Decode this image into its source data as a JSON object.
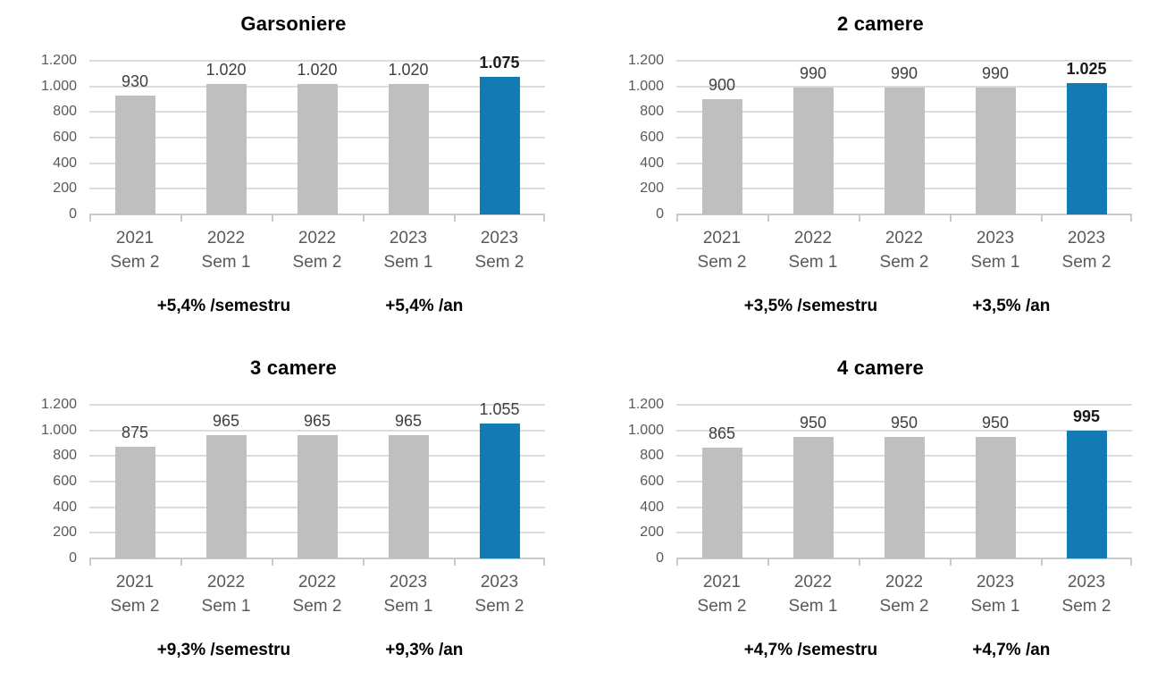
{
  "colors": {
    "bar": "#bfbfbf",
    "bar_highlight": "#147ab3",
    "gridline": "#dcdcdc",
    "axis_line": "#c9c9c9",
    "axis_text": "#595959",
    "value_text": "#3f3f3f",
    "value_text_bold": "#1a1a1a",
    "title_text": "#000000",
    "annotation_text": "#000000"
  },
  "chart_data": [
    {
      "type": "bar",
      "title": "Garsoniere",
      "categories": [
        "2021 Sem 2",
        "2022 Sem 1",
        "2022 Sem 2",
        "2023 Sem 1",
        "2023 Sem 2"
      ],
      "values": [
        930,
        1020,
        1020,
        1020,
        1075
      ],
      "value_labels": [
        "930",
        "1.020",
        "1.020",
        "1.020",
        "1.075"
      ],
      "highlight_index": 4,
      "bold_value_index": 4,
      "ylim": [
        0,
        1200
      ],
      "ytick_labels": [
        "1.200",
        "1.000",
        "800",
        "600",
        "400",
        "200",
        "0"
      ],
      "grid": "horizontal",
      "legend": false,
      "annotations": [
        "+5,4% /semestru",
        "+5,4% /an"
      ]
    },
    {
      "type": "bar",
      "title": "2 camere",
      "categories": [
        "2021 Sem 2",
        "2022 Sem 1",
        "2022 Sem 2",
        "2023 Sem 1",
        "2023 Sem 2"
      ],
      "values": [
        900,
        990,
        990,
        990,
        1025
      ],
      "value_labels": [
        "900",
        "990",
        "990",
        "990",
        "1.025"
      ],
      "highlight_index": 4,
      "bold_value_index": 4,
      "ylim": [
        0,
        1200
      ],
      "ytick_labels": [
        "1.200",
        "1.000",
        "800",
        "600",
        "400",
        "200",
        "0"
      ],
      "grid": "horizontal",
      "legend": false,
      "annotations": [
        "+3,5% /semestru",
        "+3,5% /an"
      ]
    },
    {
      "type": "bar",
      "title": "3 camere",
      "categories": [
        "2021 Sem 2",
        "2022 Sem 1",
        "2022 Sem 2",
        "2023 Sem 1",
        "2023 Sem 2"
      ],
      "values": [
        875,
        965,
        965,
        965,
        1055
      ],
      "value_labels": [
        "875",
        "965",
        "965",
        "965",
        "1.055"
      ],
      "highlight_index": 4,
      "bold_value_index": -1,
      "ylim": [
        0,
        1200
      ],
      "ytick_labels": [
        "1.200",
        "1.000",
        "800",
        "600",
        "400",
        "200",
        "0"
      ],
      "grid": "horizontal",
      "legend": false,
      "annotations": [
        "+9,3% /semestru",
        "+9,3% /an"
      ]
    },
    {
      "type": "bar",
      "title": "4 camere",
      "categories": [
        "2021 Sem 2",
        "2022 Sem 1",
        "2022 Sem 2",
        "2023 Sem 1",
        "2023 Sem 2"
      ],
      "values": [
        865,
        950,
        950,
        950,
        995
      ],
      "value_labels": [
        "865",
        "950",
        "950",
        "950",
        "995"
      ],
      "highlight_index": 4,
      "bold_value_index": 4,
      "ylim": [
        0,
        1200
      ],
      "ytick_labels": [
        "1.200",
        "1.000",
        "800",
        "600",
        "400",
        "200",
        "0"
      ],
      "grid": "horizontal",
      "legend": false,
      "annotations": [
        "+4,7% /semestru",
        "+4,7% /an"
      ]
    }
  ]
}
